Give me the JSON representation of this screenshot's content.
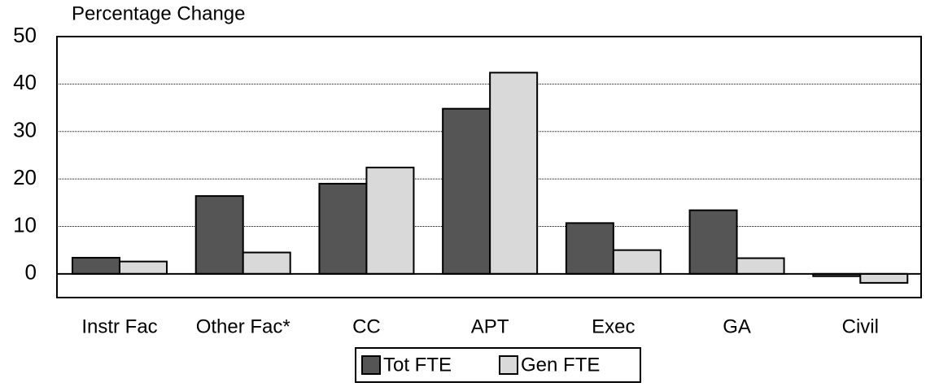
{
  "chart_data": {
    "type": "bar",
    "title": "Percentage Change",
    "categories": [
      "Instr Fac",
      "Other Fac*",
      "CC",
      "APT",
      "Exec",
      "GA",
      "Civil"
    ],
    "series": [
      {
        "name": "Tot FTE",
        "color": "#555555",
        "values": [
          3.4,
          16.4,
          19,
          34.8,
          10.7,
          13.4,
          -0.5
        ]
      },
      {
        "name": "Gen FTE",
        "color": "#d9d9d9",
        "values": [
          2.6,
          4.5,
          22.4,
          42.4,
          5,
          3.3,
          -1.9
        ]
      }
    ],
    "ylim": [
      -5,
      50
    ],
    "yticks": [
      0,
      10,
      20,
      30,
      40,
      50
    ],
    "grid": true,
    "legend": "bottom"
  }
}
